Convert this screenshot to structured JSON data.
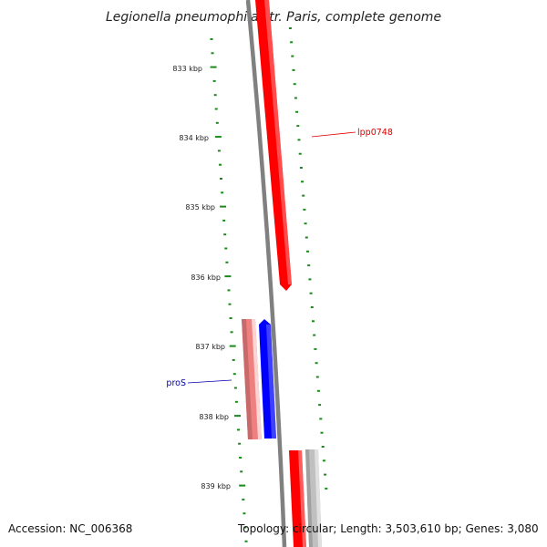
{
  "title": "Legionella pneumophila str. Paris, complete genome",
  "ruler": {
    "labels": [
      "833 kbp",
      "834 kbp",
      "835 kbp",
      "836 kbp",
      "837 kbp",
      "838 kbp",
      "839 kbp"
    ],
    "tick_color": "#1a8a1a"
  },
  "genes": [
    {
      "name": "lpp0748",
      "strand": "forward",
      "color": "#ff0000",
      "label_color": "#dd0000"
    },
    {
      "name": "proS",
      "strand": "reverse",
      "color": "#0000ff",
      "label_color": "#0000aa"
    }
  ],
  "colors": {
    "backbone": "#808080",
    "forward_gene": "#ff0000",
    "reverse_gene": "#0000ff",
    "forward_cds": "#f08080",
    "gray_feature": "#c0c0c0"
  },
  "footer": {
    "accession": "Accession: NC_006368",
    "summary": "Topology: circular; Length: 3,503,610 bp; Genes: 3,080"
  }
}
